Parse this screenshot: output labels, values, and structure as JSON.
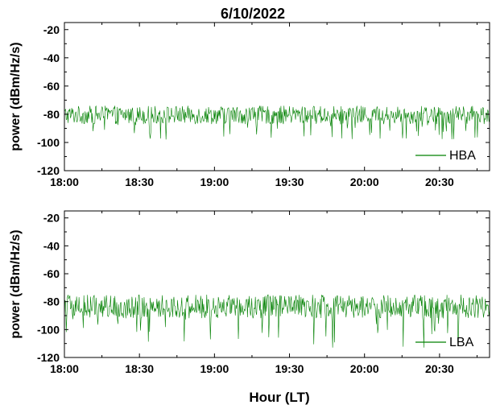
{
  "title": "6/10/2022",
  "colors": {
    "series": "#008000",
    "axis": "#000000"
  },
  "xaxis_label": "Hour (LT)",
  "chart_data": [
    {
      "type": "line",
      "ylabel": "power (dBm/Hz/s)",
      "xlabel": "",
      "xticks": [
        "18:00",
        "18:30",
        "19:00",
        "19:30",
        "20:00",
        "20:30"
      ],
      "xlim": [
        "18:00",
        "20:50"
      ],
      "ylim": [
        -120,
        -15
      ],
      "yticks": [
        -20,
        -40,
        -60,
        -80,
        -100,
        -120
      ],
      "legend_position": "bottom-right",
      "series": [
        {
          "name": "HBA",
          "mean": -80,
          "noise_band": [
            -87,
            -74
          ],
          "min_dips": -98,
          "samples": 700
        }
      ]
    },
    {
      "type": "line",
      "ylabel": "power (dBm/Hz/s)",
      "xlabel": "Hour (LT)",
      "xticks": [
        "18:00",
        "18:30",
        "19:00",
        "19:30",
        "20:00",
        "20:30"
      ],
      "xlim": [
        "18:00",
        "20:50"
      ],
      "ylim": [
        -120,
        -15
      ],
      "yticks": [
        -20,
        -40,
        -60,
        -80,
        -100,
        -120
      ],
      "legend_position": "bottom-right",
      "series": [
        {
          "name": "LBA",
          "mean": -83,
          "noise_band": [
            -92,
            -75
          ],
          "min_dips": -113,
          "samples": 700
        }
      ]
    }
  ]
}
